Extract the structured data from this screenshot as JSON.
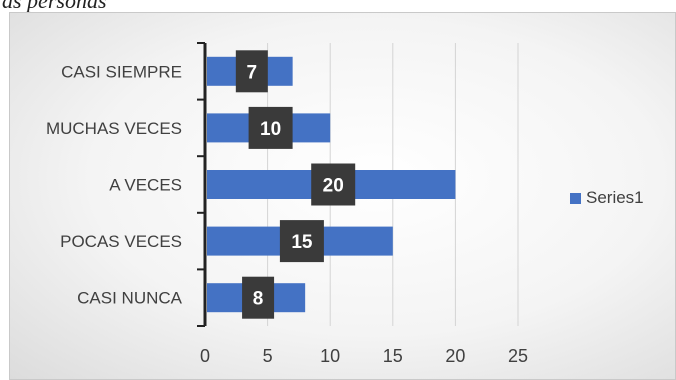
{
  "header": {
    "cutoff_text": "as personas"
  },
  "chart_data": {
    "type": "bar",
    "orientation": "horizontal",
    "categories": [
      "CASI NUNCA",
      "POCAS VECES",
      "A VECES",
      "MUCHAS VECES",
      "CASI SIEMPRE"
    ],
    "series": [
      {
        "name": "Series1",
        "values": [
          8,
          15,
          20,
          10,
          7
        ],
        "color": "#4472c4"
      }
    ],
    "xlim": [
      0,
      25
    ],
    "xticks": [
      0,
      5,
      10,
      15,
      20,
      25
    ],
    "grid": true,
    "legend": "right",
    "data_label_background": "#3a3a3a"
  }
}
